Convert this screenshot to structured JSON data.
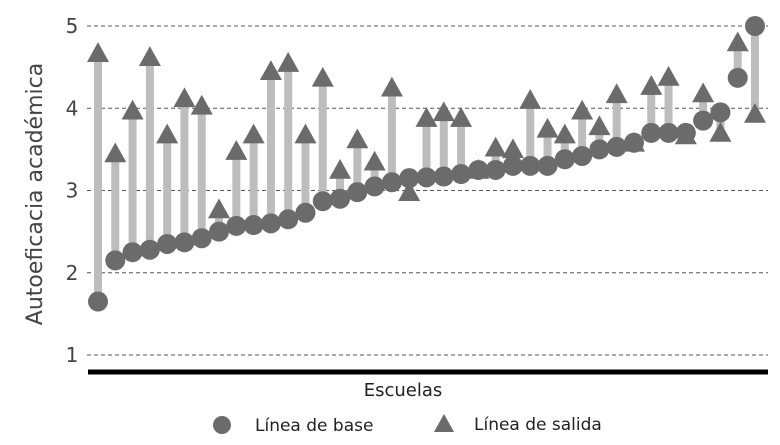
{
  "chart_data": {
    "type": "scatter",
    "xlabel": "Escuelas",
    "ylabel": "Autoeficacia académica",
    "ylim": [
      1,
      5
    ],
    "yticks": [
      "1",
      "2",
      "3",
      "4",
      "5"
    ],
    "grid": "horizontal dashed",
    "legend_position": "bottom",
    "colors": {
      "base": "#6b6b6b",
      "salida": "#6b6b6b",
      "connector": "#bdbdbd",
      "grid": "#555555"
    },
    "series": [
      {
        "name": "Línea de base",
        "marker": "circle",
        "values": [
          1.65,
          2.15,
          2.25,
          2.28,
          2.35,
          2.37,
          2.42,
          2.5,
          2.57,
          2.58,
          2.6,
          2.65,
          2.73,
          2.87,
          2.9,
          2.98,
          3.05,
          3.1,
          3.15,
          3.16,
          3.17,
          3.2,
          3.25,
          3.25,
          3.3,
          3.3,
          3.3,
          3.38,
          3.42,
          3.5,
          3.53,
          3.58,
          3.7,
          3.7,
          3.7,
          3.85,
          3.95,
          4.37,
          5.0
        ]
      },
      {
        "name": "Línea de salida",
        "marker": "triangle",
        "values": [
          4.67,
          3.45,
          3.97,
          4.62,
          3.68,
          4.12,
          4.03,
          2.77,
          3.48,
          3.68,
          4.45,
          4.55,
          3.68,
          4.37,
          3.25,
          3.62,
          3.35,
          4.25,
          2.98,
          3.88,
          3.95,
          3.88,
          3.25,
          3.52,
          3.5,
          4.1,
          3.75,
          3.68,
          3.97,
          3.78,
          4.17,
          3.58,
          4.27,
          4.38,
          3.67,
          4.18,
          3.7,
          4.8,
          3.93
        ]
      }
    ]
  }
}
